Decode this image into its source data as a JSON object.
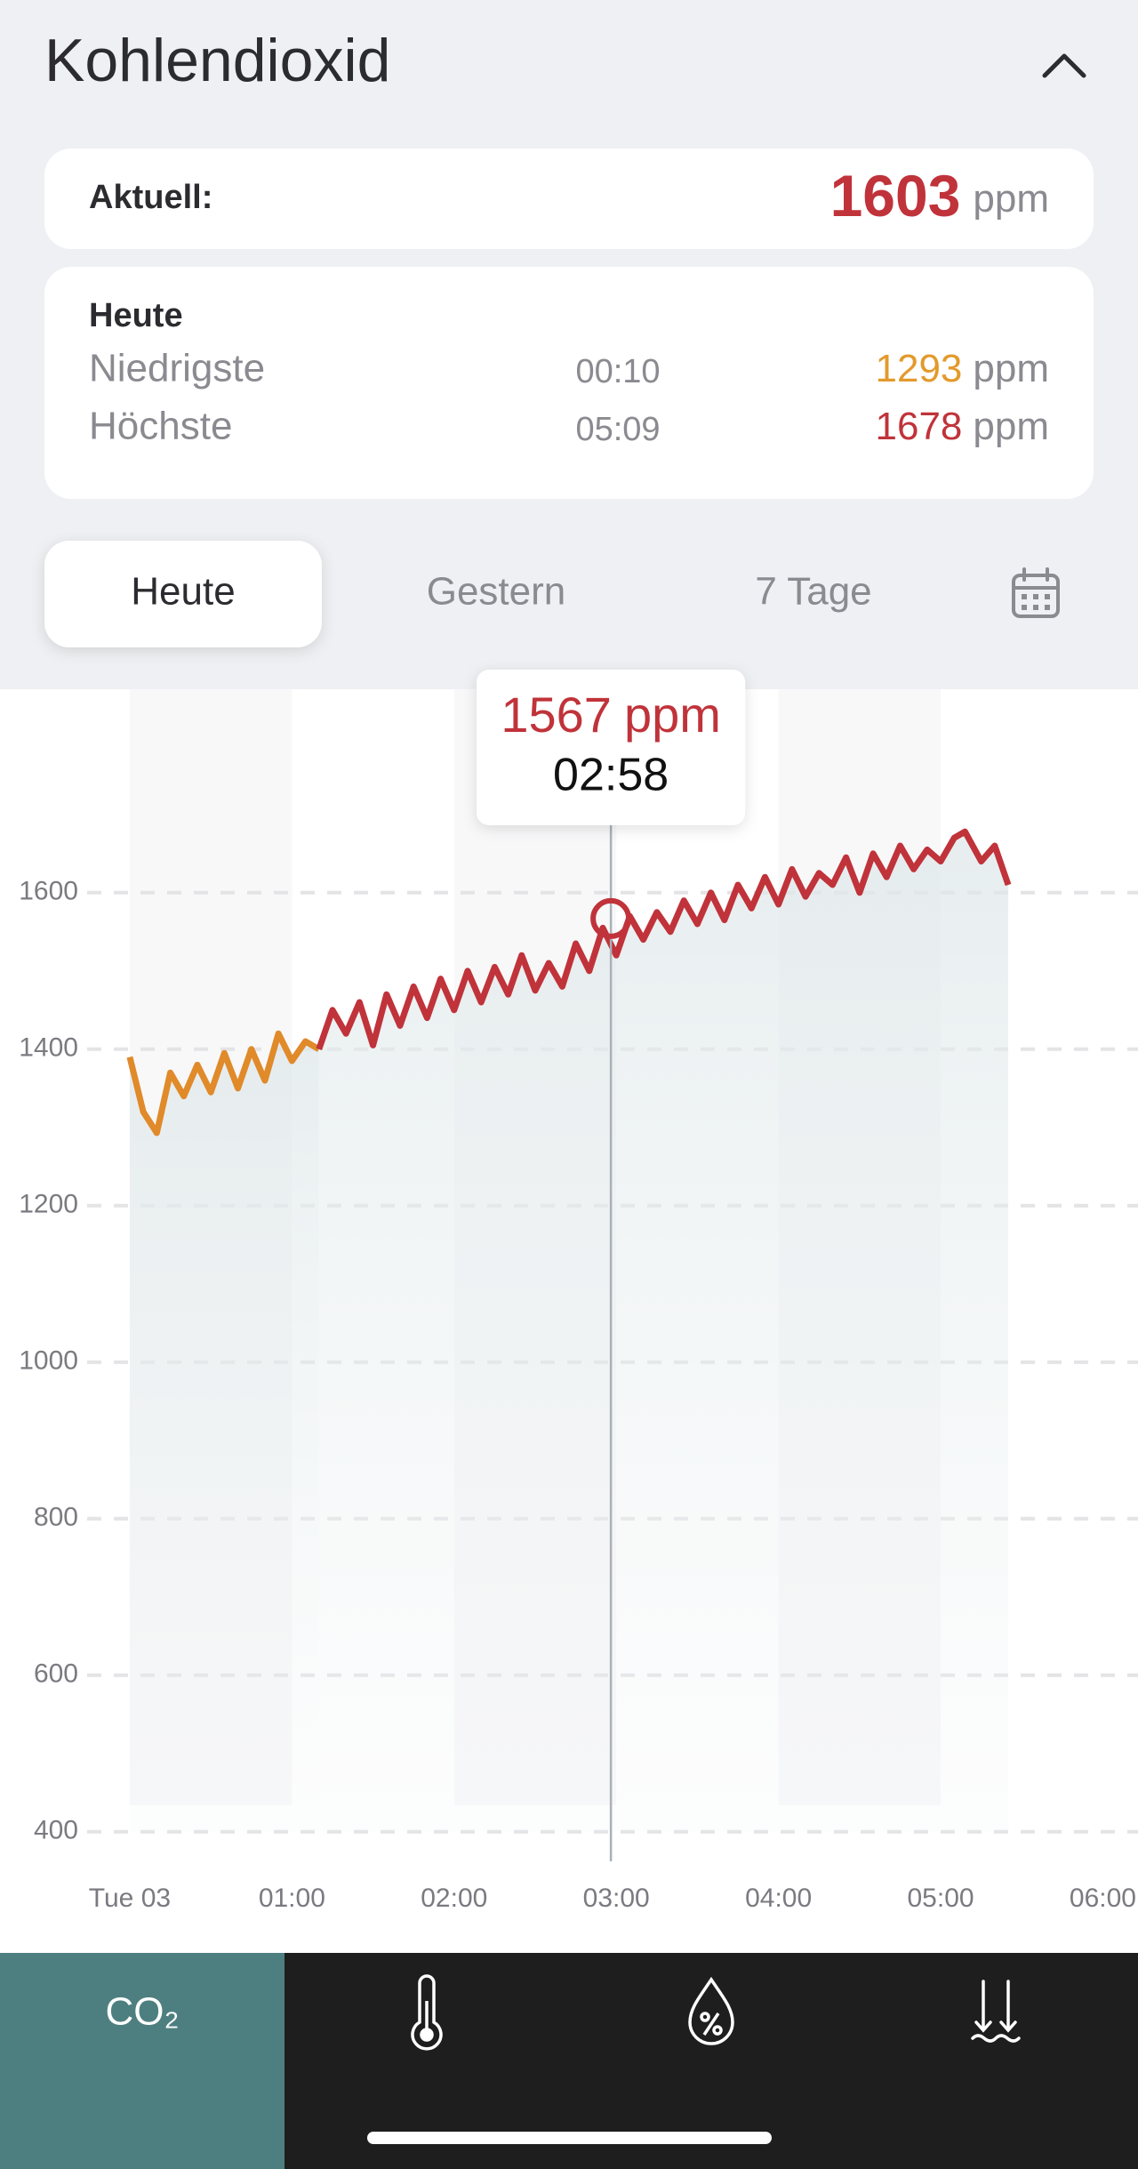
{
  "header": {
    "title": "Kohlendioxid"
  },
  "unit": "ppm",
  "current": {
    "label": "Aktuell:",
    "value": 1603,
    "color": "#c0333a"
  },
  "today": {
    "title": "Heute",
    "rows": [
      {
        "label": "Niedrigste",
        "time": "00:10",
        "value": 1293,
        "color": "#e39a2c"
      },
      {
        "label": "Höchste",
        "time": "05:09",
        "value": 1678,
        "color": "#c0333a"
      }
    ]
  },
  "tabs": [
    "Heute",
    "Gestern",
    "7 Tage"
  ],
  "chart_data": {
    "type": "line",
    "x": [
      0,
      5,
      10,
      15,
      20,
      25,
      30,
      35,
      40,
      45,
      50,
      55,
      60,
      65,
      70,
      75,
      80,
      85,
      90,
      95,
      100,
      105,
      110,
      115,
      120,
      125,
      130,
      135,
      140,
      145,
      150,
      155,
      160,
      165,
      170,
      175,
      180,
      185,
      190,
      195,
      200,
      205,
      210,
      215,
      220,
      225,
      230,
      235,
      240,
      245,
      250,
      255,
      260,
      265,
      270,
      275,
      280,
      285,
      290,
      295,
      300,
      305,
      309,
      315,
      320,
      325
    ],
    "series": [
      {
        "color": "#e08a2a",
        "values": [
          1390,
          1320,
          1293,
          1370,
          1340,
          1380,
          1345,
          1395,
          1350,
          1400,
          1360,
          1420,
          1385,
          1410,
          1400,
          null,
          null,
          null,
          null,
          null,
          null,
          null,
          null,
          null,
          null,
          null,
          null,
          null,
          null,
          null,
          null,
          null,
          null,
          null,
          null,
          null,
          null,
          null,
          null,
          null,
          null,
          null,
          null,
          null,
          null,
          null,
          null,
          null,
          null,
          null,
          null,
          null,
          null,
          null,
          null,
          null,
          null,
          null,
          null,
          null,
          null,
          null,
          null,
          null,
          null,
          null
        ]
      },
      {
        "color": "#c0333a",
        "values": [
          null,
          null,
          null,
          null,
          null,
          null,
          null,
          null,
          null,
          null,
          null,
          null,
          null,
          null,
          1400,
          1450,
          1420,
          1460,
          1405,
          1470,
          1430,
          1480,
          1440,
          1490,
          1450,
          1500,
          1460,
          1505,
          1470,
          1520,
          1475,
          1510,
          1480,
          1535,
          1500,
          1555,
          1520,
          1570,
          1540,
          1575,
          1550,
          1590,
          1560,
          1600,
          1565,
          1610,
          1580,
          1620,
          1585,
          1630,
          1595,
          1625,
          1610,
          1645,
          1600,
          1650,
          1620,
          1660,
          1630,
          1655,
          1640,
          1670,
          1678,
          1640,
          1660,
          1610
        ]
      }
    ],
    "xlim": [
      -48,
      373
    ],
    "xticks": [
      {
        "value": 0,
        "label": "Tue 03"
      },
      {
        "value": 60,
        "label": "01:00"
      },
      {
        "value": 120,
        "label": "02:00"
      },
      {
        "value": 180,
        "label": "03:00"
      },
      {
        "value": 240,
        "label": "04:00"
      },
      {
        "value": 300,
        "label": "05:00"
      },
      {
        "value": 360,
        "label": "06:00"
      }
    ],
    "ylim": [
      360,
      1860
    ],
    "yticks": [
      400,
      600,
      800,
      1000,
      1200,
      1400,
      1600
    ],
    "grid": true,
    "tooltip": {
      "x": {
        "value": 178,
        "label": "02:58"
      },
      "value": 1567,
      "color": "#c0333a"
    }
  },
  "nav": {
    "tabs": [
      "CO₂"
    ]
  }
}
